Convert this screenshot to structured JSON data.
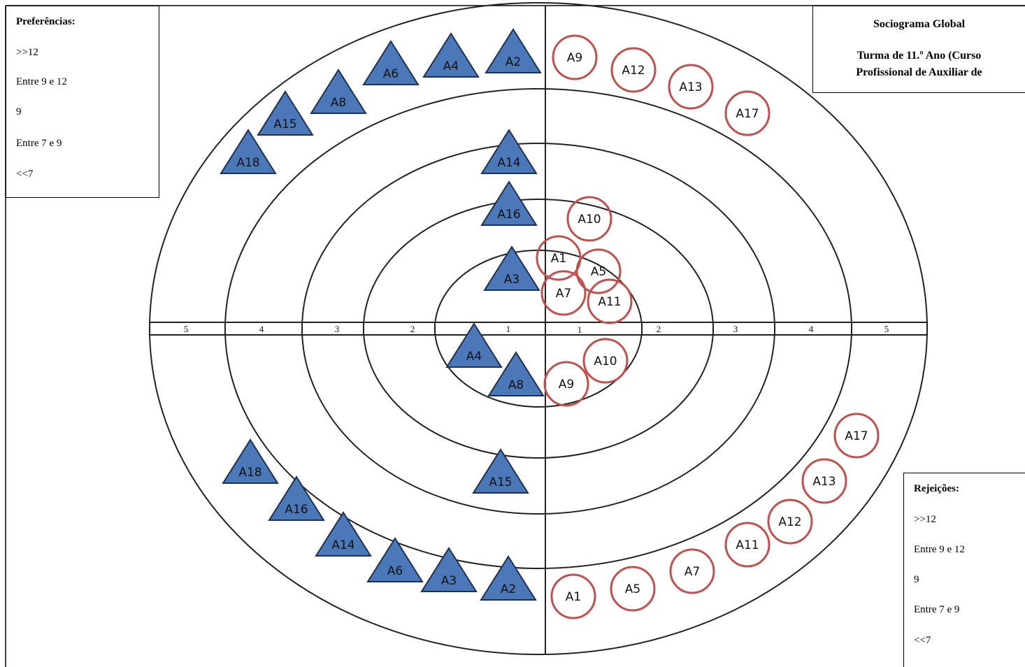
{
  "title": {
    "line1": "Sociograma Global",
    "line2": "Turma de 11.º Ano (Curso",
    "line3": "Profissional de Auxiliar de"
  },
  "preferences_legend": {
    "title": "Preferências:",
    "items": [
      ">>12",
      "Entre 9 e 12",
      "9",
      "Entre 7 e 9",
      "<<7"
    ]
  },
  "rejections_legend": {
    "title": "Rejeições:",
    "items": [
      ">>12",
      "Entre 9 e 12",
      "9",
      "Entre 7 e 9",
      "<<7"
    ]
  },
  "axis_ticks": {
    "left": [
      "5",
      "4",
      "3",
      "2",
      "1"
    ],
    "right": [
      "1",
      "2",
      "3",
      "4",
      "5"
    ]
  },
  "colors": {
    "triangle_fill": "#4a78b8",
    "triangle_stroke": "#1e3050",
    "circle_stroke": "#c0504d",
    "ring_stroke": "#222222"
  },
  "nodes": {
    "preferences_triangles_upper": [
      "A2",
      "A4",
      "A6",
      "A8",
      "A15",
      "A18",
      "A14",
      "A16",
      "A3"
    ],
    "rejections_circles_upper": [
      "A9",
      "A12",
      "A13",
      "A17",
      "A10",
      "A1",
      "A5",
      "A7",
      "A11"
    ],
    "preferences_triangles_lower": [
      "A4",
      "A8",
      "A15",
      "A18",
      "A16",
      "A14",
      "A6",
      "A3",
      "A2"
    ],
    "rejections_circles_lower": [
      "A10",
      "A9",
      "A17",
      "A13",
      "A12",
      "A11",
      "A7",
      "A5",
      "A1"
    ]
  }
}
